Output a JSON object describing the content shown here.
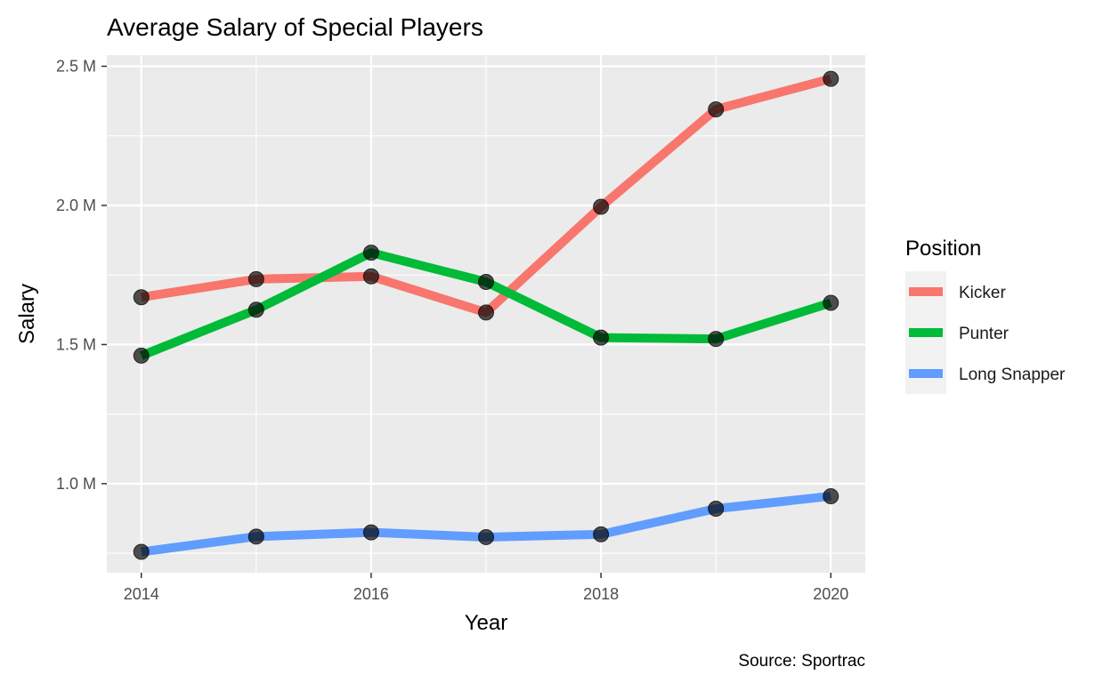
{
  "chart_data": {
    "type": "line",
    "title": "Average Salary of Special Players",
    "xlabel": "Year",
    "ylabel": "Salary",
    "caption": "Source: Sportrac",
    "x": [
      2014,
      2015,
      2016,
      2017,
      2018,
      2019,
      2020
    ],
    "x_ticks": [
      2014,
      2016,
      2018,
      2020
    ],
    "x_tick_labels": [
      "2014",
      "2016",
      "2018",
      "2020"
    ],
    "xlim": [
      2013.7,
      2020.3
    ],
    "y_ticks": [
      1000000,
      1500000,
      2000000,
      2500000
    ],
    "y_tick_labels": [
      "1.0 M",
      "1.5 M",
      "2.0 M",
      "2.5 M"
    ],
    "ylim": [
      680000,
      2540000
    ],
    "grid": true,
    "legend": {
      "title": "Position",
      "placement": "right"
    },
    "series": [
      {
        "name": "Kicker",
        "color": "#F8766D",
        "values": [
          1670000,
          1735000,
          1745000,
          1615000,
          1995000,
          2345000,
          2455000
        ]
      },
      {
        "name": "Punter",
        "color": "#00BA38",
        "values": [
          1460000,
          1625000,
          1830000,
          1725000,
          1525000,
          1520000,
          1650000
        ]
      },
      {
        "name": "Long Snapper",
        "color": "#619CFF",
        "values": [
          755000,
          810000,
          825000,
          808000,
          818000,
          910000,
          955000
        ]
      }
    ]
  }
}
